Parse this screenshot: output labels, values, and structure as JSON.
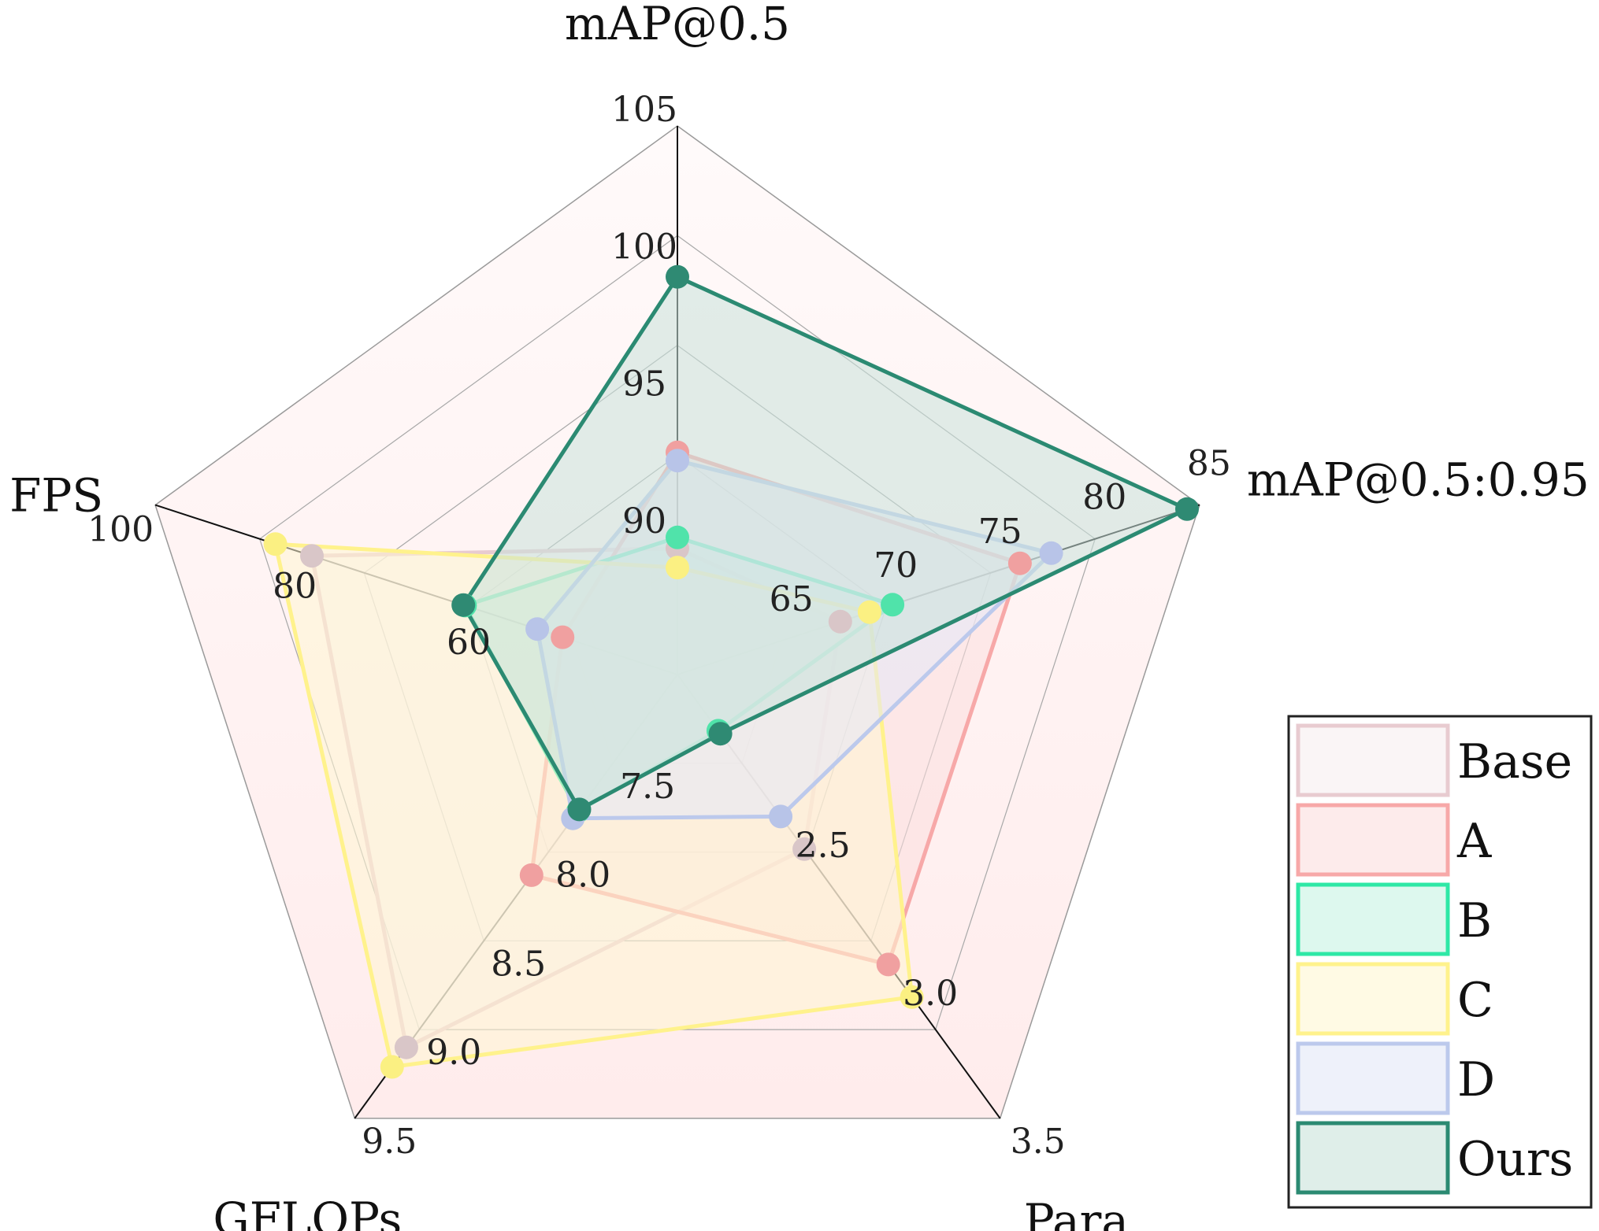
{
  "chart_data": {
    "type": "radar",
    "title": "",
    "axes": [
      {
        "name": "mAP@0.5",
        "ticks": [
          90,
          95,
          100,
          105
        ],
        "range": [
          85,
          105
        ]
      },
      {
        "name": "mAP@0.5:0.95",
        "ticks": [
          65,
          70,
          75,
          80,
          85
        ],
        "range": [
          60,
          85
        ]
      },
      {
        "name": "Para",
        "ticks": [
          2.5,
          3.0,
          3.5
        ],
        "range": [
          2.0,
          3.5
        ]
      },
      {
        "name": "GFLOPs",
        "ticks": [
          7.5,
          8.0,
          8.5,
          9.0,
          9.5
        ],
        "range": [
          7.0,
          9.5
        ]
      },
      {
        "name": "FPS",
        "ticks": [
          60,
          80,
          100
        ],
        "range": [
          40,
          100
        ]
      }
    ],
    "series": [
      {
        "name": "Base",
        "values": [
          89.6,
          67.8,
          2.59,
          9.1,
          82.0
        ],
        "color": "#e8cbd0",
        "fill": "#f7eff0",
        "marker": "#d9c6c8"
      },
      {
        "name": "A",
        "values": [
          93.1,
          76.4,
          2.98,
          8.13,
          53.2
        ],
        "color": "#f7a8a8",
        "fill": "#fcdede",
        "marker": "#f0a0a0"
      },
      {
        "name": "B",
        "values": [
          90.0,
          70.3,
          2.19,
          7.77,
          64.4
        ],
        "color": "#2ee8a6",
        "fill": "#c7f4e2",
        "marker": "#50e3aa"
      },
      {
        "name": "C",
        "values": [
          88.9,
          69.2,
          3.09,
          9.21,
          86.2
        ],
        "color": "#fff28c",
        "fill": "#fff6d2",
        "marker": "#fbf082"
      },
      {
        "name": "D",
        "values": [
          92.8,
          77.9,
          2.48,
          7.81,
          56.1
        ],
        "color": "#bcc9ec",
        "fill": "#e3e8f7",
        "marker": "#b8c4e8"
      },
      {
        "name": "Ours",
        "values": [
          99.5,
          84.4,
          2.2,
          7.76,
          64.6
        ],
        "color": "#2b8a72",
        "fill": "#c9e2da",
        "marker": "#2f8a73"
      }
    ],
    "legend": {
      "position": "bottom-right",
      "entries": [
        "Base",
        "A",
        "B",
        "C",
        "D",
        "Ours"
      ]
    },
    "grid": true,
    "background_color": "#fff1f1"
  }
}
